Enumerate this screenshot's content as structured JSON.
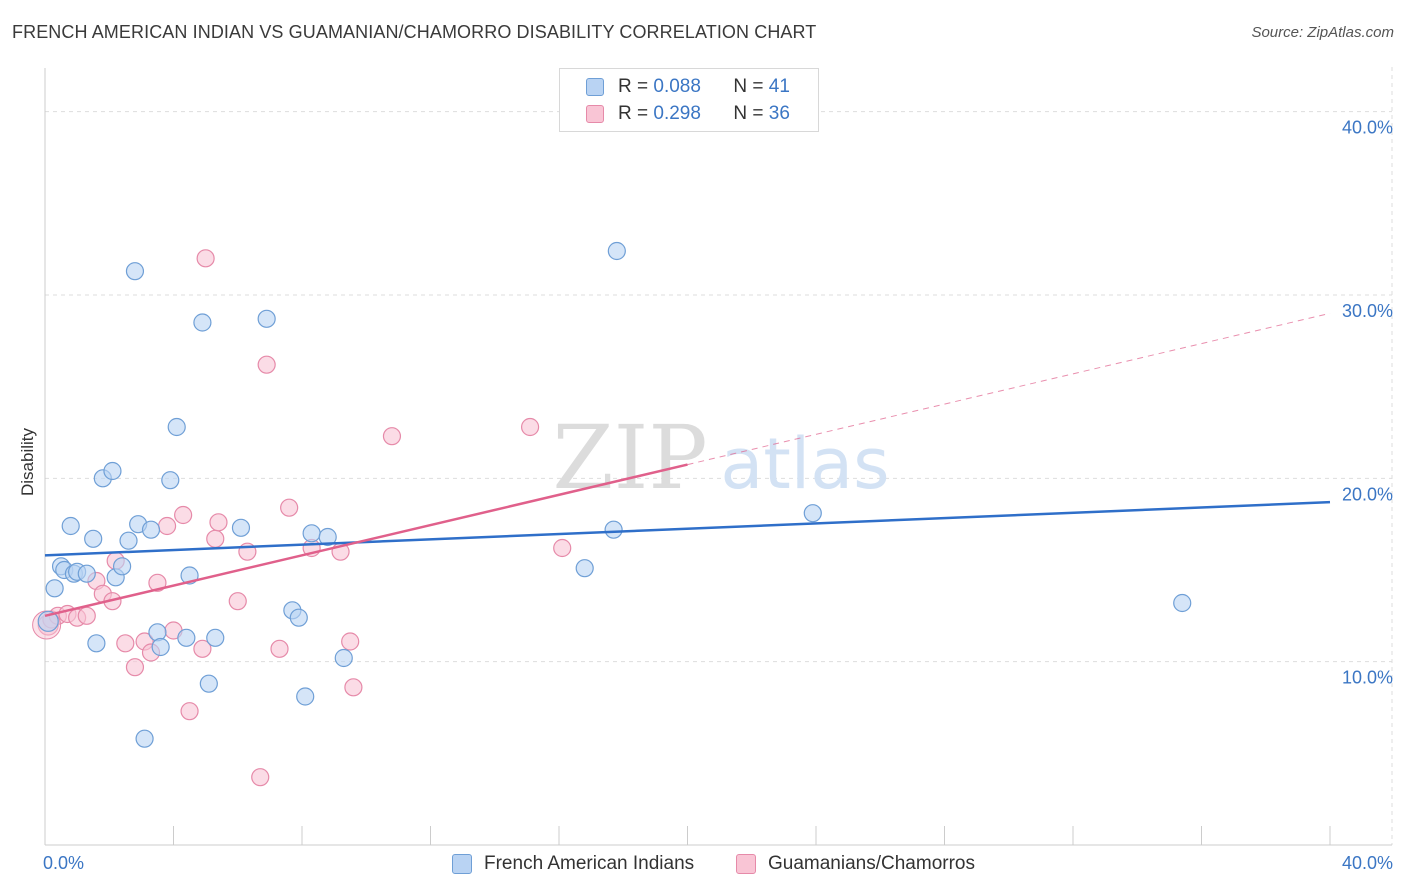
{
  "title": "FRENCH AMERICAN INDIAN VS GUAMANIAN/CHAMORRO DISABILITY CORRELATION CHART",
  "source": "Source: ZipAtlas.com",
  "watermark": {
    "zip": "ZIP",
    "atlas": "atlas"
  },
  "legend": {
    "series1": {
      "r_label": "R =",
      "r_value": "0.088",
      "n_label": "N =",
      "n_value": "41"
    },
    "series2": {
      "r_label": "R =",
      "r_value": "0.298",
      "n_label": "N =",
      "n_value": "36"
    }
  },
  "colors": {
    "blue_fill": "#b9d3f3",
    "blue_stroke": "#6f9fd6",
    "blue_line": "#2f6fc9",
    "pink_fill": "#f9c5d5",
    "pink_stroke": "#e68aa9",
    "pink_line": "#e0608b",
    "axis_text": "#3b76c4",
    "grid": "#dddddd"
  },
  "chart_data": {
    "type": "scatter",
    "title": "FRENCH AMERICAN INDIAN VS GUAMANIAN/CHAMORRO DISABILITY CORRELATION CHART",
    "xlabel": "",
    "ylabel": "Disability",
    "xlim": [
      0,
      40
    ],
    "ylim": [
      0,
      42
    ],
    "x_tick_labels": [
      "0.0%",
      "40.0%"
    ],
    "y_ticks": [
      10,
      20,
      30,
      40
    ],
    "y_tick_labels": [
      "10.0%",
      "20.0%",
      "30.0%",
      "40.0%"
    ],
    "grid": true,
    "series": [
      {
        "name": "French American Indians",
        "r": 0.088,
        "n": 41,
        "trend": {
          "x": [
            0,
            40
          ],
          "y": [
            15.8,
            18.7
          ],
          "dashed_from": null
        },
        "points": [
          [
            0.1,
            12.2
          ],
          [
            0.3,
            14.0
          ],
          [
            0.5,
            15.2
          ],
          [
            0.6,
            15.0
          ],
          [
            0.8,
            17.4
          ],
          [
            0.9,
            14.8
          ],
          [
            1.0,
            14.9
          ],
          [
            1.3,
            14.8
          ],
          [
            1.5,
            16.7
          ],
          [
            1.6,
            11.0
          ],
          [
            1.8,
            20.0
          ],
          [
            2.1,
            20.4
          ],
          [
            2.2,
            14.6
          ],
          [
            2.4,
            15.2
          ],
          [
            2.6,
            16.6
          ],
          [
            2.8,
            31.3
          ],
          [
            2.9,
            17.5
          ],
          [
            3.1,
            5.8
          ],
          [
            3.3,
            17.2
          ],
          [
            3.5,
            11.6
          ],
          [
            3.6,
            10.8
          ],
          [
            3.9,
            19.9
          ],
          [
            4.1,
            22.8
          ],
          [
            4.4,
            11.3
          ],
          [
            4.5,
            14.7
          ],
          [
            4.9,
            28.5
          ],
          [
            5.1,
            8.8
          ],
          [
            5.3,
            11.3
          ],
          [
            6.1,
            17.3
          ],
          [
            6.9,
            28.7
          ],
          [
            7.7,
            12.8
          ],
          [
            7.9,
            12.4
          ],
          [
            8.1,
            8.1
          ],
          [
            8.3,
            17.0
          ],
          [
            8.8,
            16.8
          ],
          [
            9.3,
            10.2
          ],
          [
            16.8,
            15.1
          ],
          [
            17.7,
            17.2
          ],
          [
            17.8,
            32.4
          ],
          [
            23.9,
            18.1
          ],
          [
            35.4,
            13.2
          ]
        ]
      },
      {
        "name": "Guamanians/Chamorros",
        "r": 0.298,
        "n": 36,
        "trend": {
          "x": [
            0,
            40
          ],
          "y": [
            12.5,
            29.0
          ],
          "dashed_from": 20
        },
        "points": [
          [
            0.1,
            12.0
          ],
          [
            0.2,
            12.3
          ],
          [
            0.4,
            12.5
          ],
          [
            0.7,
            12.6
          ],
          [
            1.0,
            12.4
          ],
          [
            1.3,
            12.5
          ],
          [
            1.6,
            14.4
          ],
          [
            1.8,
            13.7
          ],
          [
            2.1,
            13.3
          ],
          [
            2.2,
            15.5
          ],
          [
            2.5,
            11.0
          ],
          [
            2.8,
            9.7
          ],
          [
            3.1,
            11.1
          ],
          [
            3.3,
            10.5
          ],
          [
            3.5,
            14.3
          ],
          [
            3.8,
            17.4
          ],
          [
            4.0,
            11.7
          ],
          [
            4.3,
            18.0
          ],
          [
            4.5,
            7.3
          ],
          [
            4.9,
            10.7
          ],
          [
            5.0,
            32.0
          ],
          [
            5.3,
            16.7
          ],
          [
            5.4,
            17.6
          ],
          [
            6.0,
            13.3
          ],
          [
            6.3,
            16.0
          ],
          [
            6.7,
            3.7
          ],
          [
            6.9,
            26.2
          ],
          [
            7.3,
            10.7
          ],
          [
            7.6,
            18.4
          ],
          [
            8.3,
            16.2
          ],
          [
            9.2,
            16.0
          ],
          [
            9.5,
            11.1
          ],
          [
            9.6,
            8.6
          ],
          [
            10.8,
            22.3
          ],
          [
            15.1,
            22.8
          ],
          [
            16.1,
            16.2
          ]
        ]
      }
    ]
  }
}
